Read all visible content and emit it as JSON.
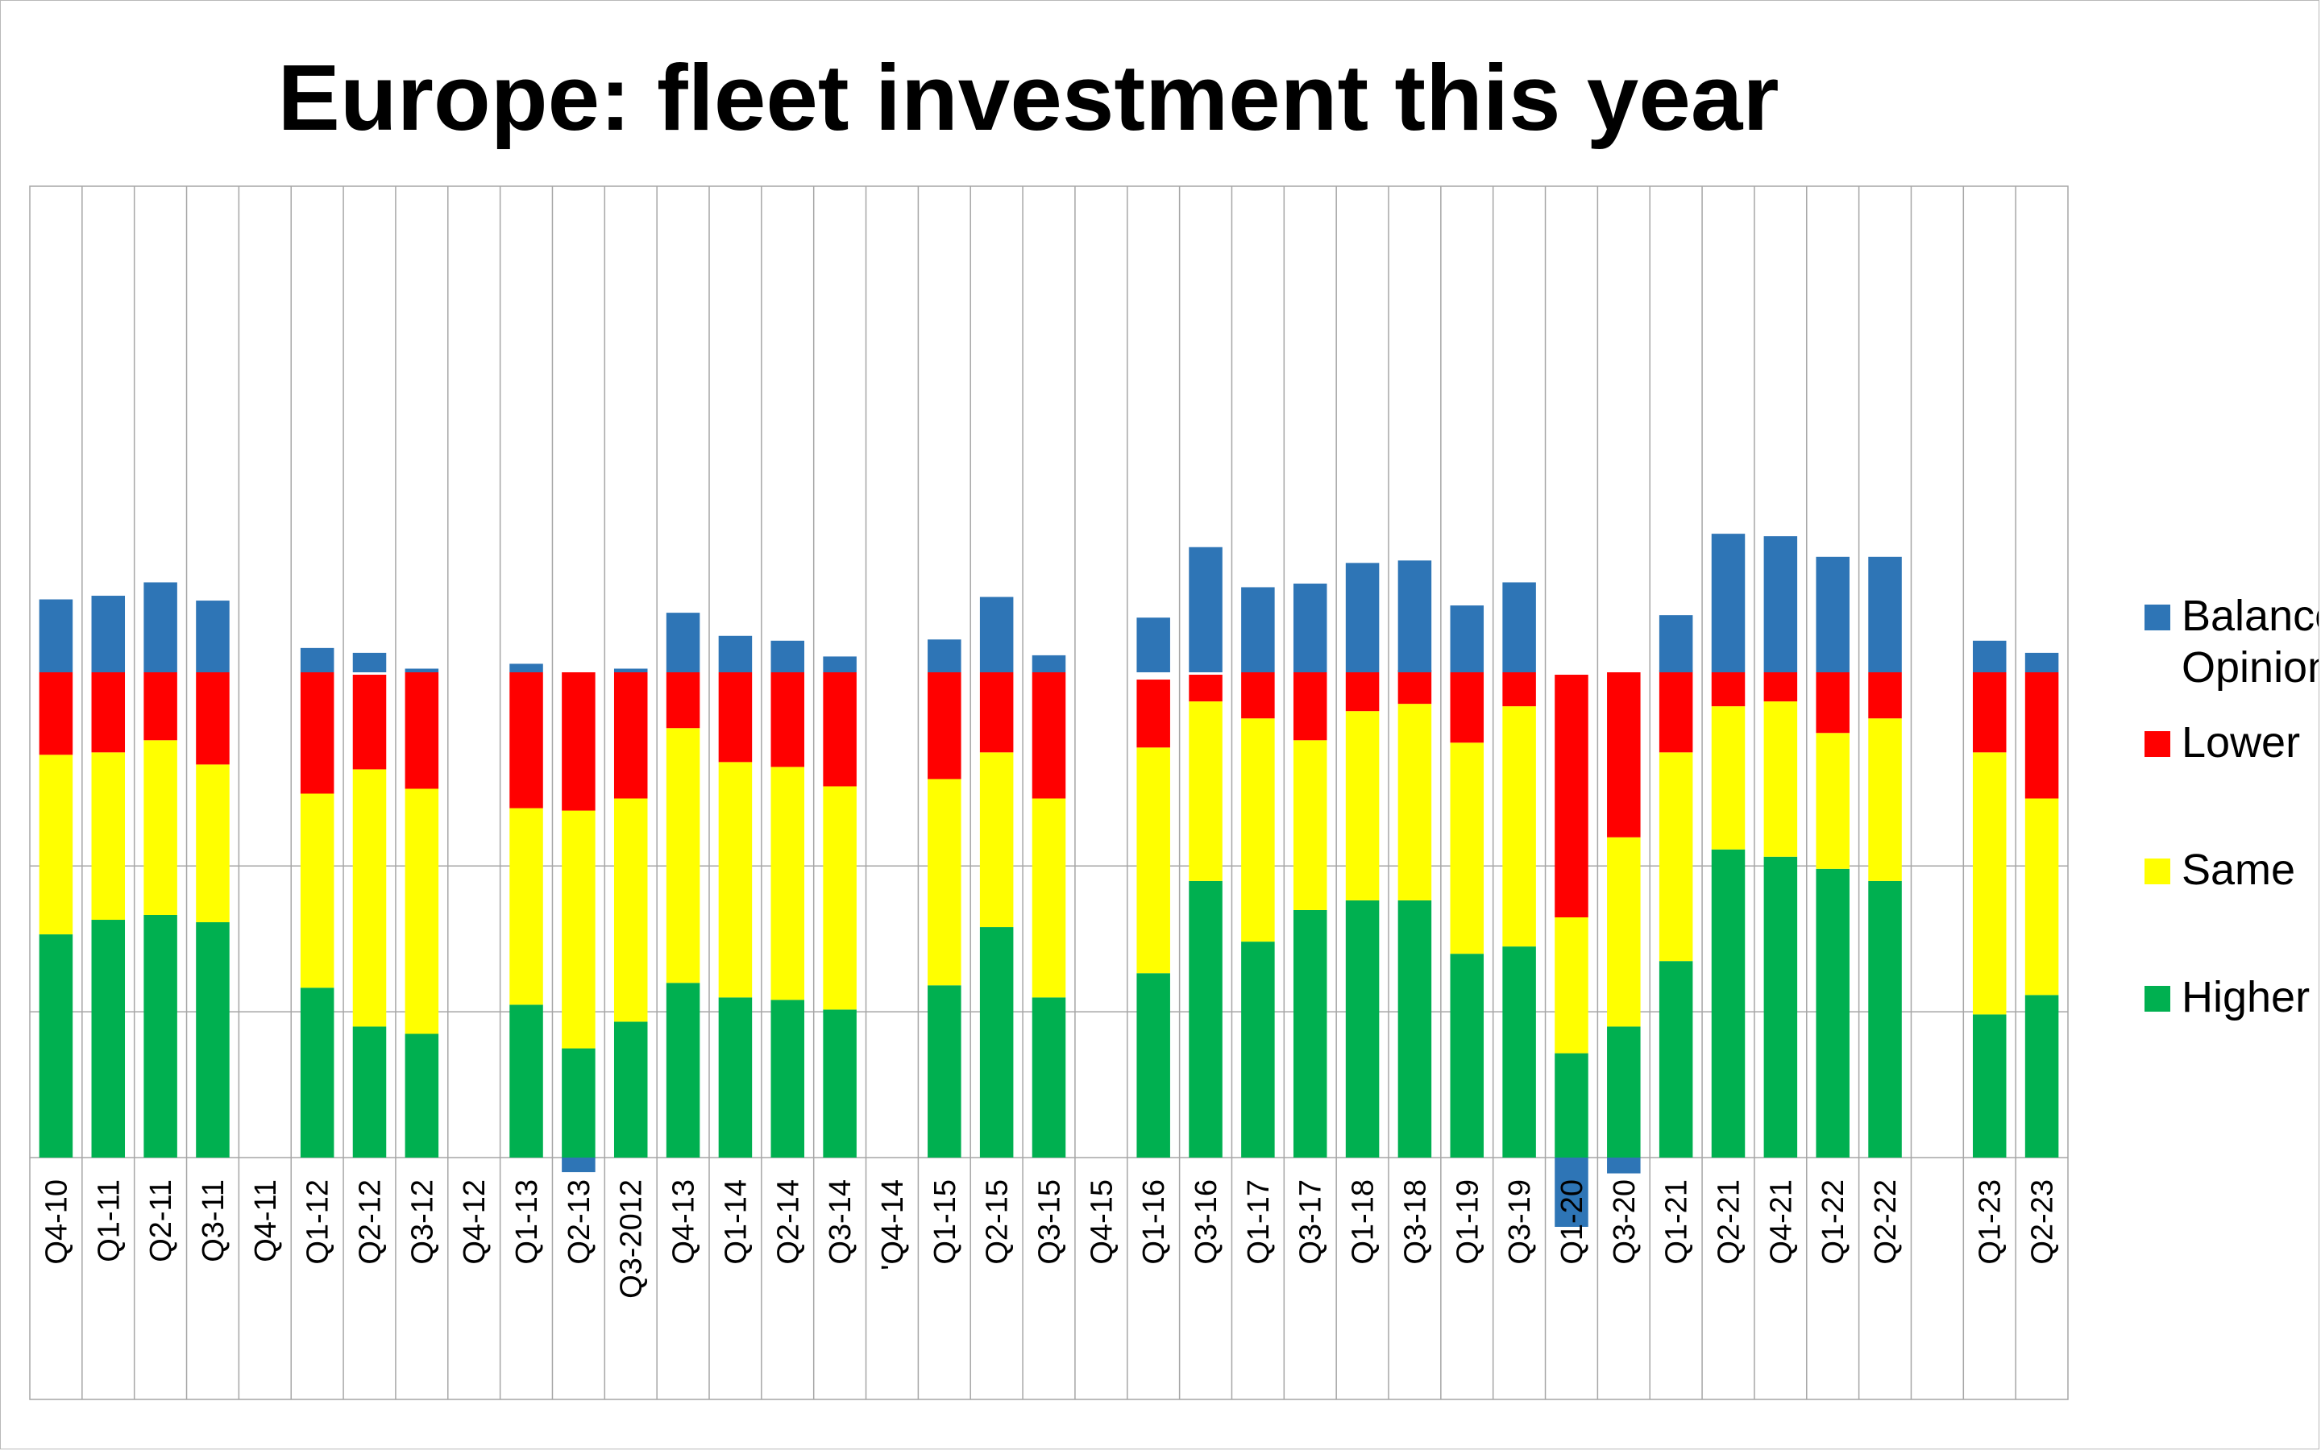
{
  "chart_data": {
    "type": "bar",
    "stacked": true,
    "title": "Europe: fleet investment this year",
    "xlabel": "",
    "ylabel": "",
    "ylim": [
      -60,
      200
    ],
    "y_tick_labels_shown": false,
    "grid": true,
    "legend_placement": "right",
    "categories": [
      "Q4-10",
      "Q1-11",
      "Q2-11",
      "Q3-11",
      "Q4-11",
      "Q1-12",
      "Q2-12",
      "Q3-12",
      "Q4-12",
      "Q1-13",
      "Q2-13",
      "Q3-2012",
      "Q4-13",
      "Q1-14",
      "Q2-14",
      "Q3-14",
      "'Q4-14",
      "Q1-15",
      "Q2-15",
      "Q3-15",
      "Q4-15",
      "Q1-16",
      "Q3-16",
      "Q1-17",
      "Q3-17",
      "Q1-18",
      "Q3-18",
      "Q1-19",
      "Q3-19",
      "Q1-20",
      "Q3-20",
      "Q1-21",
      "Q2-21",
      "Q4-21",
      "Q1-22",
      "Q2-22",
      "",
      "Q1-23",
      "Q2-23"
    ],
    "series": [
      {
        "name": "Higher",
        "color": "#00b050",
        "values": [
          46,
          49,
          50,
          48.5,
          null,
          35,
          27,
          25.5,
          null,
          31.5,
          22.5,
          28,
          36,
          33,
          32.5,
          30.5,
          null,
          35.5,
          47.5,
          33,
          null,
          38,
          57,
          44.5,
          51,
          53,
          53,
          42,
          43.5,
          21.5,
          27,
          40.5,
          63.5,
          62,
          59.5,
          57,
          null,
          29.5,
          33.5
        ]
      },
      {
        "name": "Same",
        "color": "#ffff00",
        "values": [
          37,
          34.5,
          36,
          32.5,
          null,
          40,
          53,
          50.5,
          null,
          40.5,
          49,
          46,
          52.5,
          48.5,
          48,
          46,
          null,
          42.5,
          36,
          41,
          null,
          46.5,
          37,
          46,
          35,
          39,
          40.5,
          43.5,
          49.5,
          28,
          39,
          43,
          29.5,
          32,
          28,
          33.5,
          null,
          54,
          40.5
        ]
      },
      {
        "name": "Lower",
        "color": "#ff0000",
        "values": [
          17,
          16.5,
          14,
          19,
          null,
          25,
          19.5,
          24,
          null,
          28,
          28.5,
          26,
          11.5,
          18.5,
          19.5,
          23.5,
          null,
          22,
          16.5,
          26,
          null,
          14,
          5.5,
          9.5,
          14,
          8,
          7,
          14.5,
          7,
          50,
          34,
          17,
          7,
          6,
          12.5,
          9.5,
          null,
          16.5,
          26
        ]
      },
      {
        "name": "Balance of Opinion",
        "color": "#2e75b6",
        "values": [
          30,
          31.5,
          37,
          29.5,
          null,
          10,
          8,
          1.5,
          null,
          3.5,
          -6,
          1.5,
          24.5,
          15,
          13,
          6.5,
          null,
          13.5,
          31,
          7,
          null,
          22.5,
          51.5,
          35,
          36.5,
          45,
          46,
          27.5,
          37,
          -28.5,
          -6.5,
          23.5,
          57,
          56,
          47.5,
          47.5,
          null,
          13,
          8
        ]
      }
    ],
    "legend": [
      {
        "label": "Balance of Opinion",
        "color": "#2e75b6"
      },
      {
        "label": "Lower",
        "color": "#ff0000"
      },
      {
        "label": "Same",
        "color": "#ffff00"
      },
      {
        "label": "Higher",
        "color": "#00b050"
      }
    ]
  }
}
